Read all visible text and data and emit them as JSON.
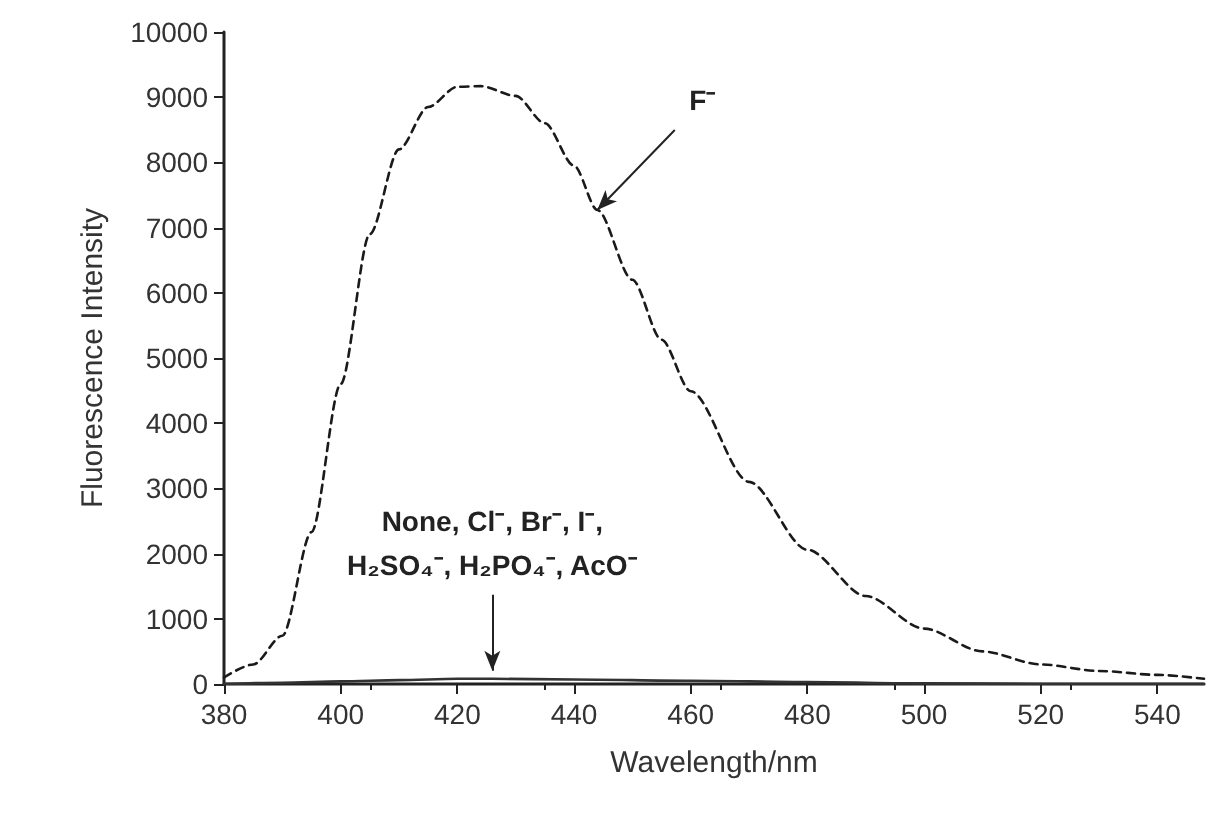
{
  "chart_data": {
    "type": "line",
    "xlabel": "Wavelength/nm",
    "ylabel": "Fluorescence Intensity",
    "xlim": [
      380,
      548
    ],
    "xticks": [
      380,
      400,
      420,
      440,
      460,
      480,
      500,
      520,
      540
    ],
    "ylim": [
      0,
      10000
    ],
    "yticks": [
      0,
      1000,
      2000,
      3000,
      4000,
      5000,
      6000,
      7000,
      8000,
      9000,
      10000
    ],
    "marker": "none",
    "series": [
      {
        "color": "#1a1a1a",
        "line_style": "dashed",
        "x": [
          380,
          385,
          390,
          395,
          400,
          405,
          410,
          415,
          420,
          424,
          430,
          435,
          440,
          444,
          450,
          455,
          460,
          470,
          480,
          490,
          500,
          510,
          520,
          530,
          540,
          548
        ],
        "values": [
          100,
          300,
          740,
          2330,
          4600,
          6900,
          8200,
          8850,
          9160,
          9170,
          9020,
          8600,
          7950,
          7270,
          6200,
          5280,
          4490,
          3100,
          2060,
          1350,
          850,
          500,
          300,
          200,
          140,
          80
        ]
      },
      {
        "color": "#333333",
        "line_style": "solid",
        "x": [
          380,
          390,
          400,
          410,
          420,
          426,
          440,
          460,
          480,
          500,
          520,
          548
        ],
        "values": [
          0,
          20,
          40,
          60,
          80,
          80,
          70,
          50,
          30,
          10,
          0,
          0
        ]
      }
    ],
    "annotations": [
      {
        "text": "F⁻",
        "x": 444,
        "y": 7270
      },
      {
        "text": "None, Cl⁻, Br⁻, I⁻,\nH₂SO₄⁻, H₂PO₄⁻, AcO⁻",
        "x": 426,
        "y": 80
      }
    ]
  }
}
